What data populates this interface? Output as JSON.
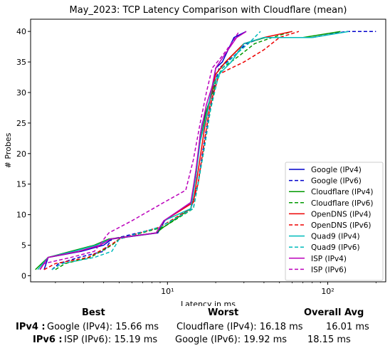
{
  "chart_data": {
    "type": "line",
    "title": "May_2023: TCP Latency Comparison with Cloudflare (mean)",
    "xlabel": "Latency in ms",
    "ylabel": "# Probes",
    "xscale": "log",
    "xlim": [
      1.4,
      230
    ],
    "ylim": [
      -1,
      42
    ],
    "yticks": [
      0,
      5,
      10,
      15,
      20,
      25,
      30,
      35,
      40
    ],
    "xticks": [
      10,
      100
    ],
    "xtick_labels": [
      "10¹",
      "10²"
    ],
    "legend_position": "lower-right",
    "series": [
      {
        "name": "Google (IPv4)",
        "color": "#0000cc",
        "dash": false,
        "x": [
          1.7,
          1.8,
          2.9,
          4.0,
          4.5,
          8.7,
          9.6,
          14.0,
          15.0,
          16.0,
          16.5,
          17.5,
          18.5,
          19.0,
          20.0,
          22.0,
          26.0,
          31.0
        ],
        "y": [
          1,
          3,
          4,
          5,
          6,
          7,
          9,
          12,
          16,
          23,
          25,
          27,
          29,
          30,
          34,
          35,
          39,
          40
        ]
      },
      {
        "name": "Google (IPv6)",
        "color": "#0000cc",
        "dash": true,
        "x": [
          1.9,
          2.1,
          2.8,
          4.0,
          4.5,
          9.5,
          14.0,
          15.5,
          16.5,
          18.0,
          20.0,
          21.0,
          26.0,
          31.0,
          40.0,
          80.0,
          130.0,
          200.0
        ],
        "y": [
          1,
          2,
          3,
          4,
          6,
          8,
          11,
          15,
          20,
          26,
          32,
          34,
          36,
          38,
          39,
          39,
          40,
          40
        ]
      },
      {
        "name": "Cloudflare (IPv4)",
        "color": "#009900",
        "dash": false,
        "x": [
          1.5,
          1.8,
          2.5,
          3.5,
          4.3,
          8.5,
          9.5,
          14.0,
          15.0,
          16.0,
          17.5,
          19.0,
          20.0,
          23.0,
          30.0,
          41.0,
          70.0,
          120.0
        ],
        "y": [
          1,
          3,
          4,
          5,
          6,
          7,
          8,
          11,
          17,
          22,
          27,
          30,
          33,
          35,
          38,
          39,
          39,
          40
        ]
      },
      {
        "name": "Cloudflare (IPv6)",
        "color": "#009900",
        "dash": true,
        "x": [
          2.0,
          2.3,
          3.3,
          4.5,
          5.0,
          9.5,
          14.5,
          15.5,
          17.0,
          18.5,
          20.0,
          22.0,
          28.0,
          35.0,
          45.0,
          60.0
        ],
        "y": [
          1,
          2,
          3,
          5,
          6,
          8,
          11,
          15,
          21,
          27,
          32,
          34,
          36,
          38,
          39,
          40
        ]
      },
      {
        "name": "OpenDNS (IPv4)",
        "color": "#ee0000",
        "dash": false,
        "x": [
          1.6,
          1.8,
          2.8,
          3.8,
          4.4,
          8.5,
          9.5,
          14.5,
          15.5,
          17.0,
          18.5,
          20.0,
          23.0,
          30.0,
          40.0,
          60.0
        ],
        "y": [
          1,
          3,
          4,
          5,
          6,
          7,
          9,
          12,
          17,
          24,
          29,
          33,
          35,
          38,
          39,
          40
        ]
      },
      {
        "name": "OpenDNS (IPv6)",
        "color": "#ee0000",
        "dash": true,
        "x": [
          1.7,
          2.0,
          3.2,
          4.4,
          5.0,
          9.0,
          14.0,
          15.5,
          17.0,
          18.5,
          21.0,
          25.0,
          30.0,
          40.0,
          50.0,
          66.0
        ],
        "y": [
          1,
          2,
          3,
          5,
          6,
          8,
          11,
          15,
          22,
          28,
          33,
          34,
          35,
          37,
          39,
          40
        ]
      },
      {
        "name": "Quad9 (IPv4)",
        "color": "#00bbbb",
        "dash": false,
        "x": [
          1.55,
          1.8,
          2.6,
          3.6,
          4.4,
          8.5,
          9.5,
          14.0,
          15.0,
          16.0,
          17.5,
          19.0,
          21.0,
          25.0,
          30.0,
          40.0,
          80.0,
          135.0
        ],
        "y": [
          1,
          3,
          4,
          5,
          6,
          7,
          9,
          11,
          16,
          22,
          26,
          31,
          33,
          35,
          38,
          39,
          39,
          40
        ]
      },
      {
        "name": "Quad9 (IPv6)",
        "color": "#00bbbb",
        "dash": true,
        "x": [
          1.9,
          2.2,
          3.5,
          4.5,
          5.0,
          9.0,
          14.5,
          15.5,
          17.0,
          18.5,
          20.5,
          22.0,
          26.0,
          32.0,
          38.0
        ],
        "y": [
          1,
          2,
          3,
          4,
          6,
          8,
          11,
          15,
          21,
          27,
          32,
          34,
          36,
          38,
          40
        ]
      },
      {
        "name": "ISP (IPv4)",
        "color": "#bb00bb",
        "dash": false,
        "x": [
          1.6,
          1.8,
          2.8,
          3.8,
          4.4,
          8.5,
          9.5,
          14.0,
          15.0,
          16.0,
          17.5,
          19.0,
          20.0,
          22.5,
          27.0,
          31.0
        ],
        "y": [
          1,
          3,
          4,
          5,
          6,
          7,
          9,
          12,
          17,
          23,
          28,
          31,
          34,
          36,
          39,
          40
        ]
      },
      {
        "name": "ISP (IPv6)",
        "color": "#bb00bb",
        "dash": true,
        "x": [
          1.6,
          1.7,
          2.5,
          3.5,
          4.3,
          6.0,
          9.5,
          13.0,
          14.5,
          16.0,
          17.5,
          19.0,
          22.0,
          25.0,
          28.0
        ],
        "y": [
          1,
          2,
          3,
          4,
          7,
          9,
          12,
          14,
          19,
          25,
          30,
          34,
          36,
          38,
          40
        ]
      }
    ]
  },
  "summary": {
    "headers": {
      "best": "Best",
      "worst": "Worst",
      "avg": "Overall Avg"
    },
    "rows": [
      {
        "label": "IPv4 :",
        "best": "Google (IPv4): 15.66 ms",
        "worst": "Cloudflare (IPv4): 16.18 ms",
        "avg": "16.01 ms"
      },
      {
        "label": "IPv6 :",
        "best": "ISP (IPv6): 15.19 ms",
        "worst": "Google (IPv6): 19.92 ms",
        "avg": "18.15 ms"
      }
    ]
  }
}
